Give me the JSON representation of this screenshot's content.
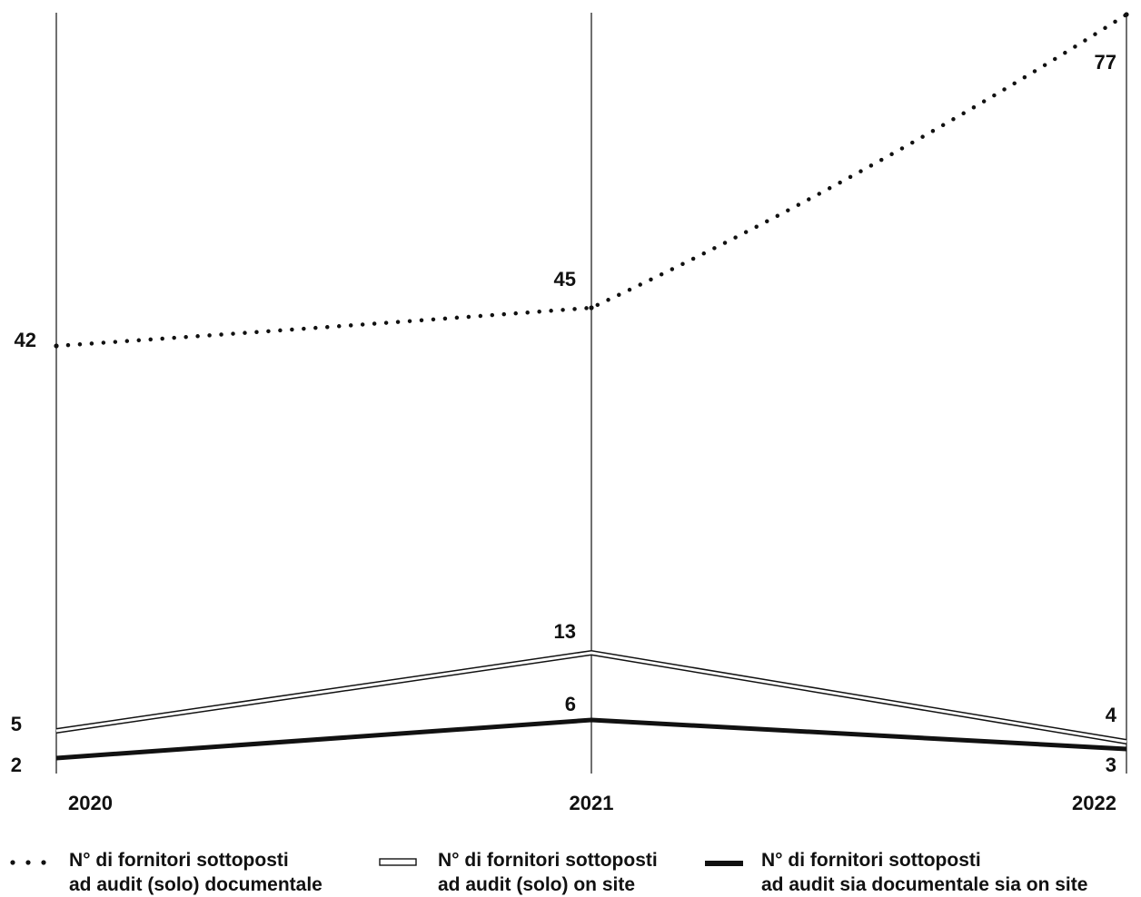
{
  "chart_data": {
    "type": "line",
    "categories": [
      "2020",
      "2021",
      "2022"
    ],
    "series": [
      {
        "name": "N° di fornitori sottoposti ad audit (solo) documentale",
        "name_lines": [
          "N° di fornitori sottoposti",
          "ad audit (solo) documentale"
        ],
        "style": "dotted",
        "values": [
          42,
          45,
          77
        ],
        "labels": [
          "42",
          "45",
          "77"
        ]
      },
      {
        "name": "N° di fornitori sottoposti ad audit (solo) on site",
        "name_lines": [
          "N° di fornitori sottoposti",
          "ad audit (solo) on site"
        ],
        "style": "double",
        "values": [
          5,
          13,
          4
        ],
        "labels": [
          "5",
          "13",
          "4"
        ]
      },
      {
        "name": "N° di fornitori sottoposti ad audit sia documentale sia on site",
        "name_lines": [
          "N° di fornitori sottoposti",
          "ad audit sia documentale sia on site"
        ],
        "style": "solid-thick",
        "values": [
          2,
          6,
          3
        ],
        "labels": [
          "2",
          "6",
          "3"
        ]
      }
    ],
    "ylim": [
      0,
      77
    ],
    "grid": "vertical lines at each year",
    "legend": "bottom",
    "colors": {
      "ink": "#111111",
      "background": "#ffffff"
    }
  }
}
